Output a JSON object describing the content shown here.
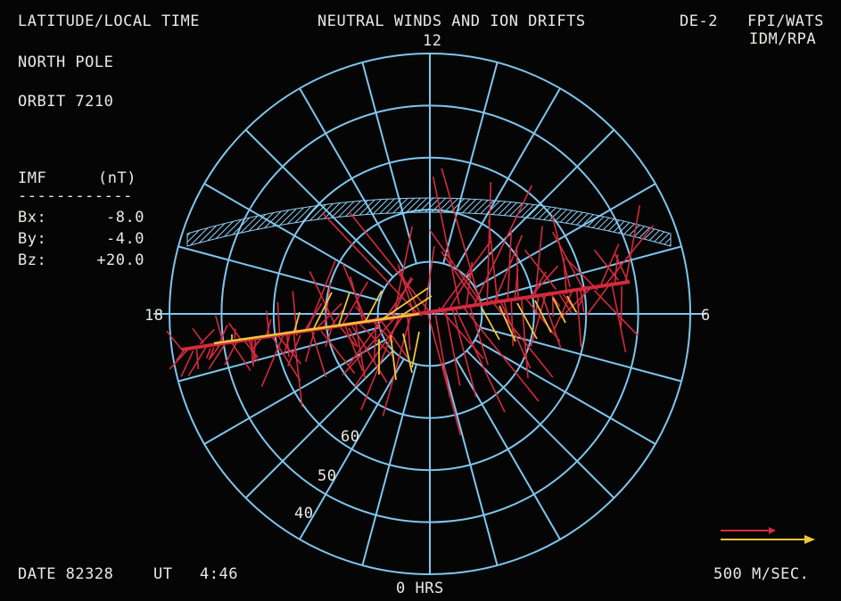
{
  "header": {
    "left_title": "LATITUDE/LOCAL TIME",
    "center_title": "NEUTRAL WINDS AND ION DRIFTS",
    "mission": "DE-2",
    "instrument_top": "FPI/WATS",
    "instrument_bottom": "IDM/RPA"
  },
  "info": {
    "pole": "NORTH POLE",
    "orbit": "ORBIT 7210"
  },
  "imf": {
    "title": "IMF",
    "unit": "(nT)",
    "separator": "------------",
    "rows": [
      {
        "label": "Bx:",
        "value": "-8.0"
      },
      {
        "label": "By:",
        "value": "-4.0"
      },
      {
        "label": "Bz:",
        "value": "+20.0"
      }
    ]
  },
  "dial": {
    "hour_top": "12",
    "hour_left": "18",
    "hour_right": "6",
    "hour_bottom": "0 HRS",
    "latitude_labels": [
      "60",
      "50",
      "40"
    ]
  },
  "footer": {
    "date": "DATE 82328",
    "ut_label": "UT",
    "ut_value": "4:46",
    "scale": "500 M/SEC."
  },
  "colors": {
    "background": "#050505",
    "grid": "#7fc6ee",
    "neutral_wind": "#d42a3c",
    "ion_drift": "#f0c63a",
    "text": "#e9e9e6"
  }
}
